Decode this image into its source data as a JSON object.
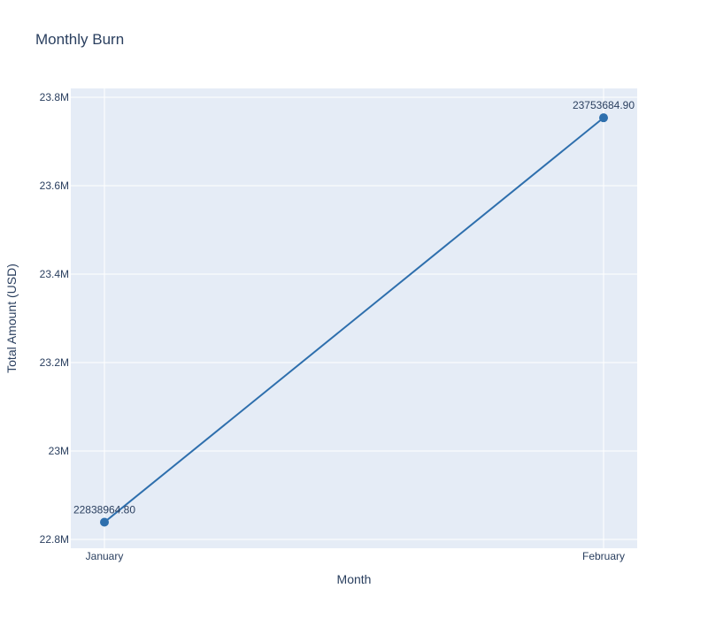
{
  "colors": {
    "plot_bg": "#e5ecf6",
    "grid": "#ffffff",
    "line": "#2e6fad",
    "text": "#2a3f5f"
  },
  "chart_data": {
    "type": "line",
    "title": "Monthly Burn",
    "xlabel": "Month",
    "ylabel": "Total Amount (USD)",
    "categories": [
      "January",
      "February"
    ],
    "series": [
      {
        "name": "Total Amount",
        "values": [
          22838964.8,
          23753684.9
        ],
        "labels": [
          "22838964.80",
          "23753684.90"
        ]
      }
    ],
    "ylim": [
      22780000,
      23820000
    ],
    "yticks": [
      22800000,
      23000000,
      23200000,
      23400000,
      23600000,
      23800000
    ],
    "ytick_labels": [
      "22.8M",
      "23M",
      "23.2M",
      "23.4M",
      "23.6M",
      "23.8M"
    ],
    "grid": true,
    "legend": "none"
  }
}
